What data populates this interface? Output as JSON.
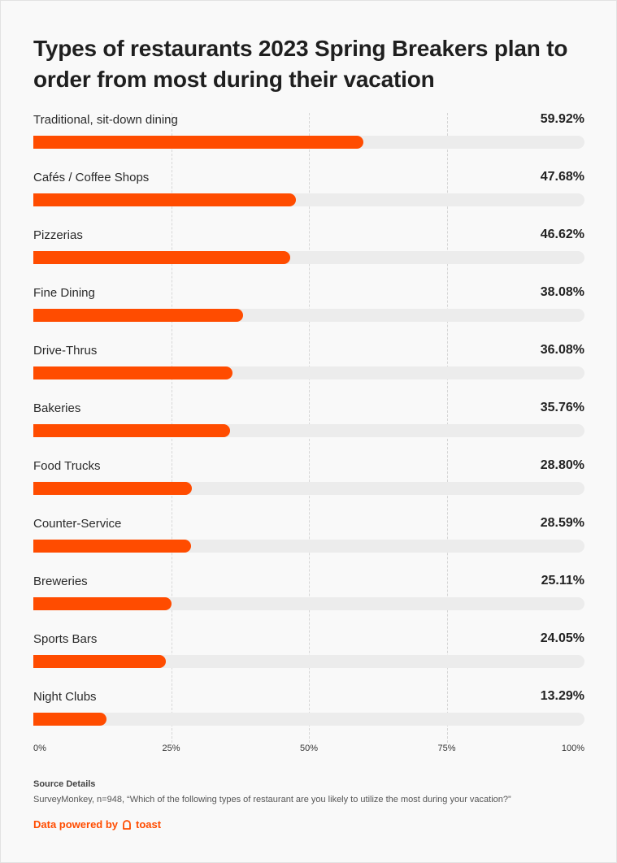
{
  "title": "Types of restaurants 2023 Spring Breakers plan to order from most during their vacation",
  "chart_data": {
    "type": "bar",
    "orientation": "horizontal",
    "categories": [
      "Traditional, sit-down dining",
      "Cafés / Coffee Shops",
      "Pizzerias",
      "Fine Dining",
      "Drive-Thrus",
      "Bakeries",
      "Food Trucks",
      "Counter-Service",
      "Breweries",
      "Sports Bars",
      "Night Clubs"
    ],
    "values": [
      59.92,
      47.68,
      46.62,
      38.08,
      36.08,
      35.76,
      28.8,
      28.59,
      25.11,
      24.05,
      13.29
    ],
    "value_labels": [
      "59.92%",
      "47.68%",
      "46.62%",
      "38.08%",
      "36.08%",
      "35.76%",
      "28.80%",
      "28.59%",
      "25.11%",
      "24.05%",
      "13.29%"
    ],
    "xlim": [
      0,
      100
    ],
    "x_ticks": [
      "0%",
      "25%",
      "50%",
      "75%",
      "100%"
    ],
    "grid": true,
    "bar_color": "#ff4c00",
    "track_color": "#ececec"
  },
  "source": {
    "heading": "Source Details",
    "text": "SurveyMonkey, n=948, “Which of the following types of restaurant are you likely to utilize the most during your vacation?”"
  },
  "footer": {
    "powered_by": "Data powered by",
    "brand": "toast",
    "brand_icon": "toast-logo-icon"
  }
}
